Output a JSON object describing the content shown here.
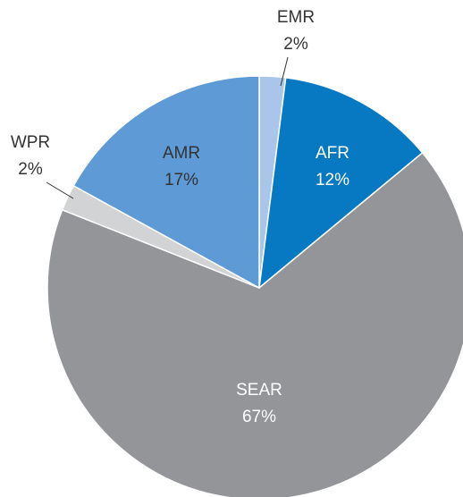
{
  "chart_data": {
    "type": "pie",
    "categories": [
      "EMR",
      "AFR",
      "SEAR",
      "WPR",
      "AMR"
    ],
    "values": [
      2,
      12,
      67,
      2,
      17
    ],
    "value_labels": [
      "2%",
      "12%",
      "67%",
      "2%",
      "17%"
    ],
    "colors": [
      "#a9c5ea",
      "#0778c2",
      "#939598",
      "#d2d3d5",
      "#5d9ad6"
    ]
  }
}
